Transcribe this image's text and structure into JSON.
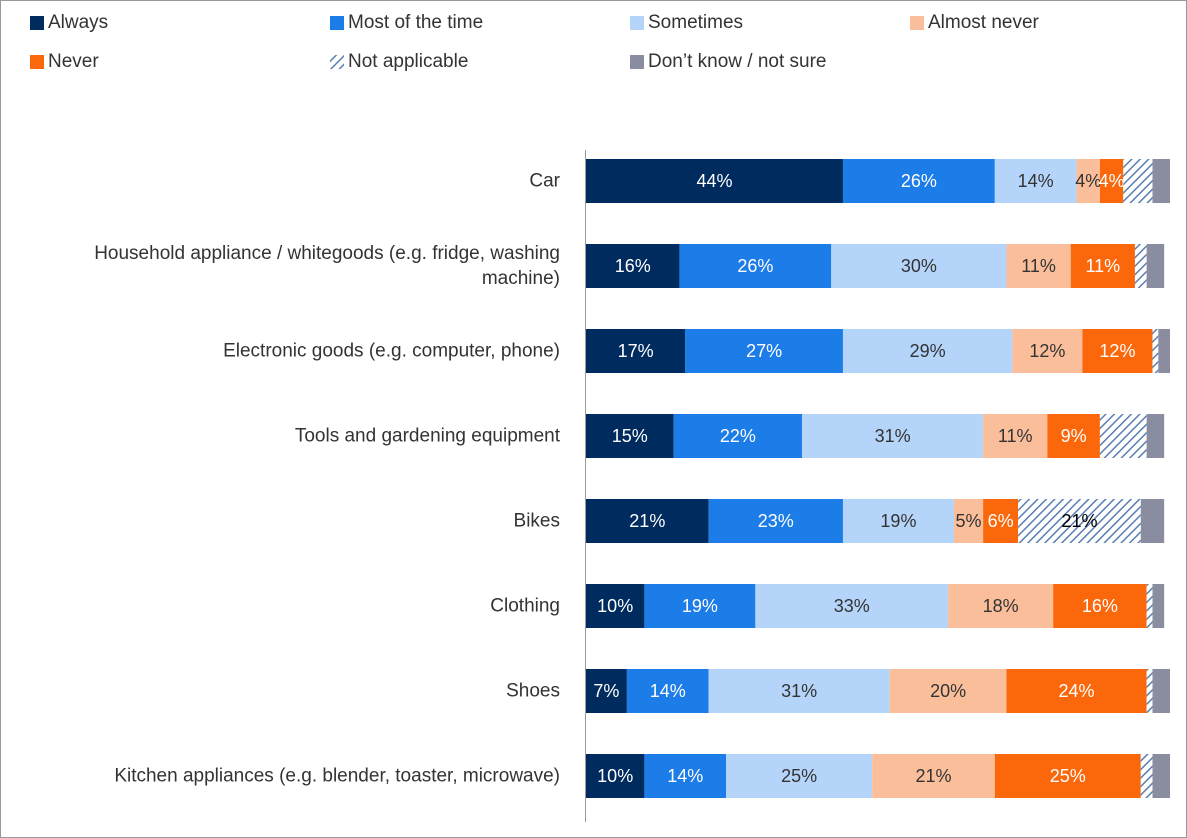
{
  "chart_data": {
    "type": "stacked_bar_horizontal",
    "categories": [
      "Car",
      "Household appliance / whitegoods (e.g. fridge, washing machine)",
      "Electronic goods (e.g. computer, phone)",
      "Tools and gardening equipment",
      "Bikes",
      "Clothing",
      "Shoes",
      "Kitchen appliances (e.g. blender, toaster, microwave)"
    ],
    "xlim": [
      0,
      100
    ],
    "legend": "top",
    "series": [
      {
        "name": "Always",
        "color": "#002b5e",
        "values": [
          44,
          16,
          17,
          15,
          21,
          10,
          7,
          10
        ],
        "value_labels": [
          "44%",
          "16%",
          "17%",
          "15%",
          "21%",
          "10%",
          "7%",
          "10%"
        ]
      },
      {
        "name": "Most of the time",
        "color": "#1c7ce8",
        "values": [
          26,
          26,
          27,
          22,
          23,
          19,
          14,
          14
        ],
        "value_labels": [
          "26%",
          "26%",
          "27%",
          "22%",
          "23%",
          "19%",
          "14%",
          "14%"
        ]
      },
      {
        "name": "Sometimes",
        "color": "#b4d4f9",
        "values": [
          14,
          30,
          29,
          31,
          19,
          33,
          31,
          25
        ],
        "value_labels": [
          "14%",
          "30%",
          "29%",
          "31%",
          "19%",
          "33%",
          "31%",
          "25%"
        ]
      },
      {
        "name": "Almost never",
        "color": "#fbbe9b",
        "values": [
          4,
          11,
          12,
          11,
          5,
          18,
          20,
          21
        ],
        "value_labels": [
          "4%",
          "11%",
          "12%",
          "11%",
          "5%",
          "18%",
          "20%",
          "21%"
        ]
      },
      {
        "name": "Never",
        "color": "#fb680c",
        "values": [
          4,
          11,
          12,
          9,
          6,
          16,
          24,
          25
        ],
        "value_labels": [
          "4%",
          "11%",
          "12%",
          "9%",
          "6%",
          "16%",
          "24%",
          "25%"
        ]
      },
      {
        "name": "Not applicable",
        "color": "#5a7fb3",
        "hatch": true,
        "values": [
          5,
          2,
          1,
          8,
          21,
          1,
          1,
          2
        ],
        "value_labels": [
          null,
          null,
          null,
          null,
          "21%",
          null,
          null,
          null
        ]
      },
      {
        "name": "Don’t know / not sure",
        "color": "#8a8da0",
        "values": [
          3,
          3,
          2,
          3,
          4,
          2,
          3,
          3
        ],
        "value_labels": [
          null,
          null,
          null,
          null,
          null,
          null,
          null,
          null
        ]
      }
    ]
  }
}
